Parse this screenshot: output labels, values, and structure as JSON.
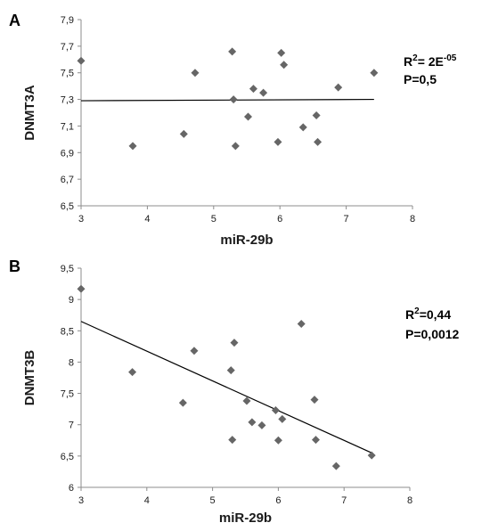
{
  "chart_data": [
    {
      "type": "scatter",
      "panel_label": "A",
      "xlabel": "miR-29b",
      "ylabel": "DNMT3A",
      "xlim": [
        3,
        8
      ],
      "ylim": [
        6.5,
        7.9
      ],
      "x_ticks": [
        "3",
        "4",
        "5",
        "6",
        "7",
        "8"
      ],
      "y_ticks": [
        "6,5",
        "6,7",
        "6,9",
        "7,1",
        "7,3",
        "7,5",
        "7,7",
        "7,9"
      ],
      "annotation": {
        "r2_prefix": "R",
        "r2_sup": "2",
        "r2_value": "= 2E",
        "r2_exp": "-05",
        "p": "P=0,5"
      },
      "trendline": {
        "x": [
          3,
          7.42
        ],
        "y": [
          7.29,
          7.3
        ]
      },
      "points": [
        {
          "x": 3.0,
          "y": 7.59
        },
        {
          "x": 3.78,
          "y": 6.95
        },
        {
          "x": 4.55,
          "y": 7.04
        },
        {
          "x": 4.72,
          "y": 7.5
        },
        {
          "x": 5.28,
          "y": 7.66
        },
        {
          "x": 5.3,
          "y": 7.3
        },
        {
          "x": 5.33,
          "y": 6.95
        },
        {
          "x": 5.52,
          "y": 7.17
        },
        {
          "x": 5.6,
          "y": 7.38
        },
        {
          "x": 5.75,
          "y": 7.35
        },
        {
          "x": 5.97,
          "y": 6.98
        },
        {
          "x": 6.02,
          "y": 7.65
        },
        {
          "x": 6.06,
          "y": 7.56
        },
        {
          "x": 6.35,
          "y": 7.09
        },
        {
          "x": 6.55,
          "y": 7.18
        },
        {
          "x": 6.57,
          "y": 6.98
        },
        {
          "x": 6.88,
          "y": 7.39
        },
        {
          "x": 7.42,
          "y": 7.5
        }
      ],
      "marker_color": "#666666"
    },
    {
      "type": "scatter",
      "panel_label": "B",
      "xlabel": "miR-29b",
      "ylabel": "DNMT3B",
      "xlim": [
        3,
        8
      ],
      "ylim": [
        6,
        9.5
      ],
      "x_ticks": [
        "3",
        "4",
        "5",
        "6",
        "7",
        "8"
      ],
      "y_ticks": [
        "6",
        "6,5",
        "7",
        "7,5",
        "8",
        "8,5",
        "9",
        "9,5"
      ],
      "annotation": {
        "r2_prefix": "R",
        "r2_sup": "2",
        "r2_value": "=0,44",
        "r2_exp": "",
        "p": "P=0,0012"
      },
      "trendline": {
        "x": [
          3,
          7.42
        ],
        "y": [
          8.65,
          6.55
        ]
      },
      "points": [
        {
          "x": 3.0,
          "y": 9.17
        },
        {
          "x": 3.78,
          "y": 7.84
        },
        {
          "x": 4.55,
          "y": 7.35
        },
        {
          "x": 4.72,
          "y": 8.18
        },
        {
          "x": 5.28,
          "y": 7.87
        },
        {
          "x": 5.3,
          "y": 6.76
        },
        {
          "x": 5.33,
          "y": 8.31
        },
        {
          "x": 5.52,
          "y": 7.38
        },
        {
          "x": 5.6,
          "y": 7.04
        },
        {
          "x": 5.75,
          "y": 6.99
        },
        {
          "x": 5.96,
          "y": 7.23
        },
        {
          "x": 6.0,
          "y": 6.75
        },
        {
          "x": 6.06,
          "y": 7.09
        },
        {
          "x": 6.35,
          "y": 8.61
        },
        {
          "x": 6.55,
          "y": 7.4
        },
        {
          "x": 6.57,
          "y": 6.76
        },
        {
          "x": 6.88,
          "y": 6.34
        },
        {
          "x": 7.42,
          "y": 6.51
        }
      ],
      "marker_color": "#666666"
    }
  ]
}
